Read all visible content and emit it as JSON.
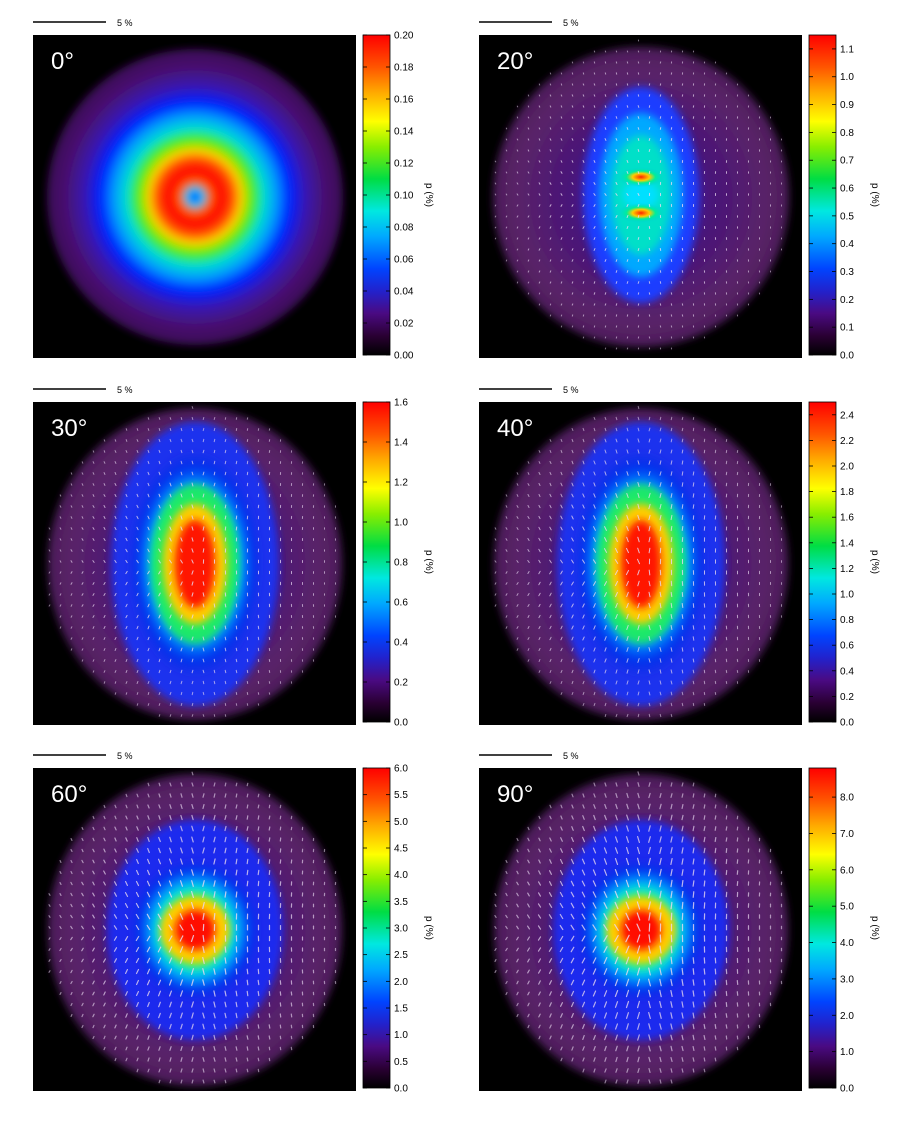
{
  "scalebar_label": "5 %",
  "colorbar_label": "p (%)",
  "chart_data": [
    {
      "type": "heatmap",
      "panel": "0°",
      "label": "0°",
      "colorbar_ticks": [
        "0.00",
        "0.02",
        "0.04",
        "0.06",
        "0.08",
        "0.10",
        "0.12",
        "0.14",
        "0.16",
        "0.18",
        "0.20"
      ],
      "colorbar_range": [
        0,
        0.2
      ],
      "pattern": "ring",
      "vector_density": 0
    },
    {
      "type": "heatmap",
      "panel": "20°",
      "label": "20°",
      "colorbar_ticks": [
        "0.0",
        "0.1",
        "0.2",
        "0.3",
        "0.4",
        "0.5",
        "0.6",
        "0.7",
        "0.8",
        "0.9",
        "1.0",
        "1.1"
      ],
      "colorbar_range": [
        0,
        1.15
      ],
      "pattern": "butterfly",
      "vector_density": 1
    },
    {
      "type": "heatmap",
      "panel": "30°",
      "label": "30°",
      "colorbar_ticks": [
        "0.0",
        "0.2",
        "0.4",
        "0.6",
        "0.8",
        "1.0",
        "1.2",
        "1.4",
        "1.6"
      ],
      "colorbar_range": [
        0,
        1.6
      ],
      "pattern": "elongated",
      "vector_density": 2
    },
    {
      "type": "heatmap",
      "panel": "40°",
      "label": "40°",
      "colorbar_ticks": [
        "0.0",
        "0.2",
        "0.4",
        "0.6",
        "0.8",
        "1.0",
        "1.2",
        "1.4",
        "1.6",
        "1.8",
        "2.0",
        "2.2",
        "2.4"
      ],
      "colorbar_range": [
        0,
        2.5
      ],
      "pattern": "elongated",
      "vector_density": 3
    },
    {
      "type": "heatmap",
      "panel": "60°",
      "label": "60°",
      "colorbar_ticks": [
        "0.0",
        "0.5",
        "1.0",
        "1.5",
        "2.0",
        "2.5",
        "3.0",
        "3.5",
        "4.0",
        "4.5",
        "5.0",
        "5.5",
        "6.0"
      ],
      "colorbar_range": [
        0,
        6
      ],
      "pattern": "central",
      "vector_density": 4
    },
    {
      "type": "heatmap",
      "panel": "90°",
      "label": "90°",
      "colorbar_ticks": [
        "0.0",
        "1.0",
        "2.0",
        "3.0",
        "4.0",
        "5.0",
        "6.0",
        "7.0",
        "8.0"
      ],
      "colorbar_range": [
        0,
        8.8
      ],
      "pattern": "central",
      "vector_density": 5
    }
  ]
}
